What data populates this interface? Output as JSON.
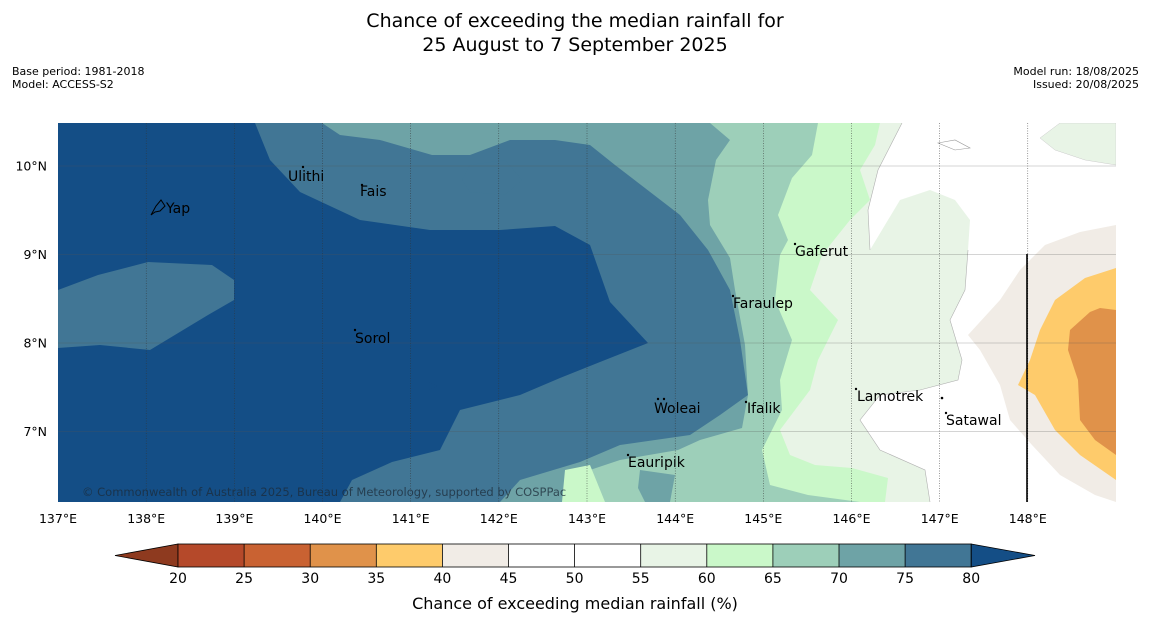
{
  "title": {
    "line1": "Chance of exceeding the median rainfall for",
    "line2": "25 August to 7 September 2025"
  },
  "meta_left": {
    "base_period": "Base period: 1981-2018",
    "model": "Model: ACCESS-S2"
  },
  "meta_right": {
    "model_run": "Model run: 18/08/2025",
    "issued": "Issued: 20/08/2025"
  },
  "map": {
    "lon_ticks": [
      "137°E",
      "138°E",
      "139°E",
      "140°E",
      "141°E",
      "142°E",
      "143°E",
      "144°E",
      "145°E",
      "146°E",
      "147°E",
      "148°E"
    ],
    "lat_ticks": [
      "10°N",
      "9°N",
      "8°N",
      "7°N"
    ],
    "places": [
      "Yap",
      "Ulithi",
      "Fais",
      "Gaferut",
      "Faraulep",
      "Sorol",
      "Lamotrek",
      "Woleai",
      "Ifalik",
      "Satawal",
      "Eauripik"
    ],
    "copyright": "© Commonwealth of Australia 2025, Bureau of Meteorology, supported by COSPPac"
  },
  "colorbar": {
    "ticks": [
      "20",
      "25",
      "30",
      "35",
      "40",
      "45",
      "50",
      "55",
      "60",
      "65",
      "70",
      "75",
      "80"
    ],
    "label": "Chance of exceeding median rainfall (%)",
    "colors": [
      "#8e3a1f",
      "#b5492a",
      "#c96232",
      "#e0924a",
      "#fecb6b",
      "#f1ece6",
      "#ffffff",
      "#ffffff",
      "#e8f4e6",
      "#caf8c9",
      "#9dcfb9",
      "#6ea3a6",
      "#417695",
      "#144e86"
    ]
  }
}
